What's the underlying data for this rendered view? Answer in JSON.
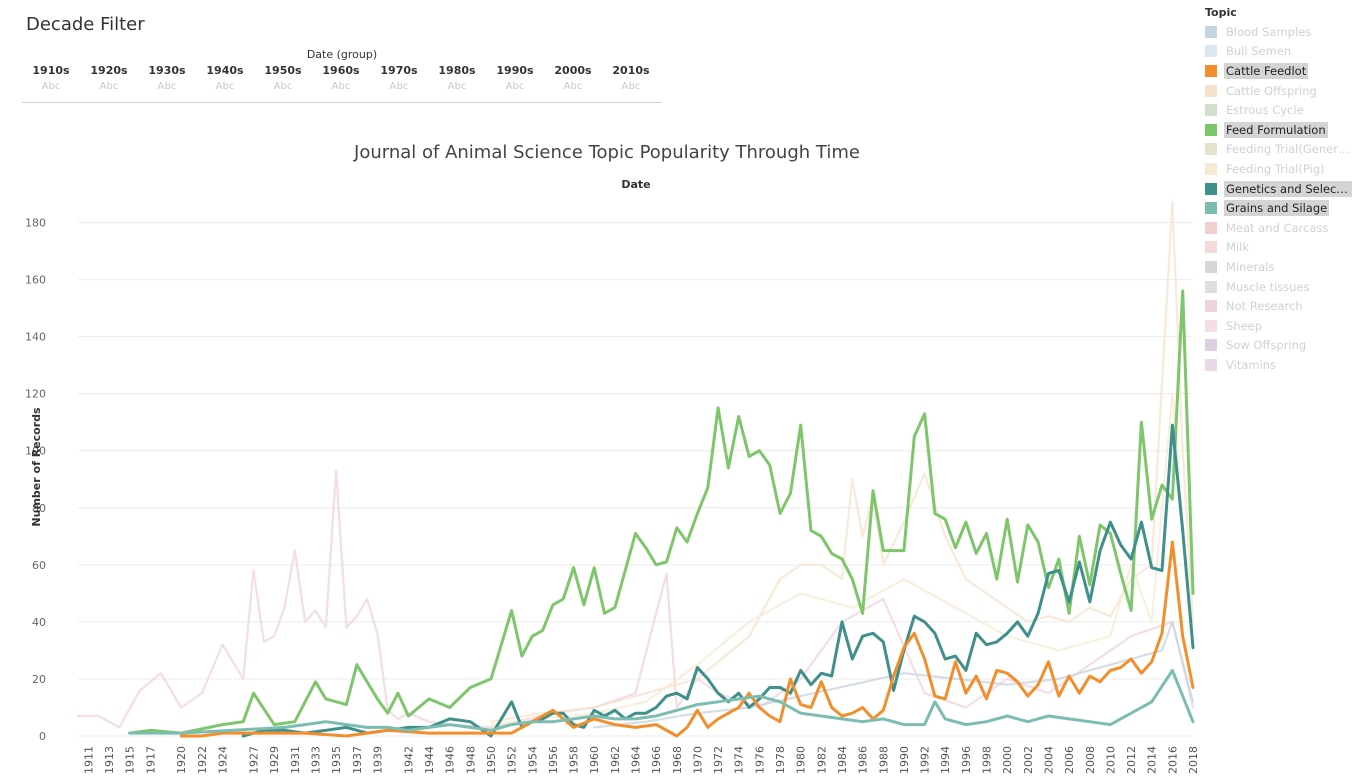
{
  "filter": {
    "title": "Decade Filter",
    "group_header": "Date (group)",
    "decades": [
      {
        "label": "1910s",
        "value": "Abc"
      },
      {
        "label": "1920s",
        "value": "Abc"
      },
      {
        "label": "1930s",
        "value": "Abc"
      },
      {
        "label": "1940s",
        "value": "Abc"
      },
      {
        "label": "1950s",
        "value": "Abc"
      },
      {
        "label": "1960s",
        "value": "Abc"
      },
      {
        "label": "1970s",
        "value": "Abc"
      },
      {
        "label": "1980s",
        "value": "Abc"
      },
      {
        "label": "1990s",
        "value": "Abc"
      },
      {
        "label": "2000s",
        "value": "Abc"
      },
      {
        "label": "2010s",
        "value": "Abc"
      }
    ]
  },
  "legend": {
    "title": "Topic",
    "items": [
      {
        "label": "Blood Samples",
        "color": "#c5d3e2",
        "state": "faded"
      },
      {
        "label": "Bull Semen",
        "color": "#dbe6f2",
        "state": "faded"
      },
      {
        "label": "Cattle Feedlot",
        "color": "#f28e2b",
        "state": "highlight"
      },
      {
        "label": "Cattle Offspring",
        "color": "#f5e1cc",
        "state": "faded"
      },
      {
        "label": "Estrous Cycle",
        "color": "#d0e0cc",
        "state": "faded"
      },
      {
        "label": "Feed Formulation",
        "color": "#7ec66b",
        "state": "highlight"
      },
      {
        "label": "Feeding Trial(Generic)",
        "color": "#e2e2cf",
        "state": "faded"
      },
      {
        "label": "Feeding Trial(Pig)",
        "color": "#f5ebd2",
        "state": "faded"
      },
      {
        "label": "Genetics and Selecti...",
        "color": "#3f8f8a",
        "state": "highlight"
      },
      {
        "label": "Grains and Silage",
        "color": "#7cbdb2",
        "state": "highlight"
      },
      {
        "label": "Meat and Carcass",
        "color": "#f1d0d0",
        "state": "faded"
      },
      {
        "label": "Milk",
        "color": "#f6d8d8",
        "state": "faded"
      },
      {
        "label": "Minerals",
        "color": "#d6d6d6",
        "state": "faded"
      },
      {
        "label": "Muscle tissues",
        "color": "#dedede",
        "state": "faded"
      },
      {
        "label": "Not Research",
        "color": "#efd3dc",
        "state": "faded"
      },
      {
        "label": "Sheep",
        "color": "#f4dfe6",
        "state": "faded"
      },
      {
        "label": "Sow Offspring",
        "color": "#dcd0e0",
        "state": "faded"
      },
      {
        "label": "Vitamins",
        "color": "#ead8e6",
        "state": "faded"
      }
    ]
  },
  "chart_data": {
    "type": "line",
    "title": "Journal of Animal Science Topic Popularity Through Time",
    "column_header": "Date",
    "ylabel": "Number of Records",
    "ylim": [
      0,
      190
    ],
    "yticks": [
      0,
      20,
      40,
      60,
      80,
      100,
      120,
      140,
      160,
      180
    ],
    "xlim": [
      1910,
      2018
    ],
    "xticks": [
      1911,
      1913,
      1915,
      1917,
      1920,
      1922,
      1924,
      1927,
      1929,
      1931,
      1933,
      1935,
      1937,
      1939,
      1942,
      1944,
      1946,
      1948,
      1950,
      1952,
      1954,
      1956,
      1958,
      1960,
      1962,
      1964,
      1966,
      1968,
      1970,
      1972,
      1974,
      1976,
      1978,
      1980,
      1982,
      1984,
      1986,
      1988,
      1990,
      1992,
      1994,
      1996,
      1998,
      2000,
      2002,
      2004,
      2006,
      2008,
      2010,
      2012,
      2014,
      2016,
      2018
    ],
    "grid": "horizontal",
    "series": [
      {
        "name": "Feed Formulation",
        "color": "#7ec66b",
        "emphasis": true,
        "x": [
          1915,
          1917,
          1920,
          1924,
          1926,
          1927,
          1929,
          1931,
          1933,
          1934,
          1936,
          1937,
          1939,
          1940,
          1941,
          1942,
          1944,
          1946,
          1948,
          1950,
          1952,
          1953,
          1954,
          1955,
          1956,
          1957,
          1958,
          1959,
          1960,
          1961,
          1962,
          1964,
          1965,
          1966,
          1967,
          1968,
          1969,
          1970,
          1971,
          1972,
          1973,
          1974,
          1975,
          1976,
          1977,
          1978,
          1979,
          1980,
          1981,
          1982,
          1983,
          1984,
          1985,
          1986,
          1987,
          1988,
          1989,
          1990,
          1991,
          1992,
          1993,
          1994,
          1995,
          1996,
          1997,
          1998,
          1999,
          2000,
          2001,
          2002,
          2003,
          2004,
          2005,
          2006,
          2007,
          2008,
          2009,
          2010,
          2011,
          2012,
          2013,
          2014,
          2015,
          2016,
          2017,
          2018
        ],
        "y": [
          1,
          2,
          1,
          4,
          5,
          15,
          4,
          5,
          19,
          13,
          11,
          25,
          13,
          8,
          15,
          7,
          13,
          10,
          17,
          20,
          44,
          28,
          35,
          37,
          46,
          48,
          59,
          46,
          59,
          43,
          45,
          71,
          66,
          60,
          61,
          73,
          68,
          78,
          87,
          115,
          94,
          112,
          98,
          100,
          95,
          78,
          85,
          109,
          72,
          70,
          64,
          62,
          55,
          43,
          86,
          65,
          65,
          65,
          105,
          113,
          78,
          76,
          66,
          75,
          64,
          71,
          55,
          76,
          54,
          74,
          68,
          52,
          62,
          43,
          70,
          53,
          74,
          71,
          57,
          44,
          110,
          76,
          88,
          83,
          156,
          50
        ]
      },
      {
        "name": "Genetics and Selection",
        "color": "#3f8f8a",
        "emphasis": true,
        "x": [
          1926,
          1928,
          1930,
          1932,
          1934,
          1936,
          1938,
          1940,
          1942,
          1944,
          1946,
          1948,
          1950,
          1952,
          1953,
          1954,
          1955,
          1956,
          1957,
          1958,
          1959,
          1960,
          1961,
          1962,
          1963,
          1964,
          1965,
          1966,
          1967,
          1968,
          1969,
          1970,
          1971,
          1972,
          1973,
          1974,
          1975,
          1976,
          1977,
          1978,
          1979,
          1980,
          1981,
          1982,
          1983,
          1984,
          1985,
          1986,
          1987,
          1988,
          1989,
          1990,
          1991,
          1992,
          1993,
          1994,
          1995,
          1996,
          1997,
          1998,
          1999,
          2000,
          2001,
          2002,
          2003,
          2004,
          2005,
          2006,
          2007,
          2008,
          2009,
          2010,
          2011,
          2012,
          2013,
          2014,
          2015,
          2016,
          2017,
          2018
        ],
        "y": [
          0,
          2,
          2,
          1,
          2,
          3,
          1,
          2,
          3,
          3,
          6,
          5,
          0,
          12,
          3,
          5,
          6,
          8,
          8,
          4,
          3,
          9,
          7,
          9,
          6,
          8,
          8,
          10,
          14,
          15,
          13,
          24,
          20,
          15,
          12,
          15,
          10,
          13,
          17,
          17,
          15,
          23,
          18,
          22,
          21,
          40,
          27,
          35,
          36,
          33,
          16,
          30,
          42,
          40,
          36,
          27,
          28,
          23,
          36,
          32,
          33,
          36,
          40,
          35,
          43,
          57,
          58,
          47,
          61,
          47,
          65,
          75,
          67,
          62,
          75,
          59,
          58,
          109,
          72,
          31
        ]
      },
      {
        "name": "Cattle Feedlot",
        "color": "#f28e2b",
        "emphasis": true,
        "x": [
          1920,
          1922,
          1924,
          1928,
          1932,
          1936,
          1940,
          1944,
          1948,
          1952,
          1956,
          1958,
          1960,
          1962,
          1964,
          1966,
          1968,
          1969,
          1970,
          1971,
          1972,
          1974,
          1975,
          1976,
          1977,
          1978,
          1979,
          1980,
          1981,
          1982,
          1983,
          1984,
          1985,
          1986,
          1987,
          1988,
          1989,
          1990,
          1991,
          1992,
          1993,
          1994,
          1995,
          1996,
          1997,
          1998,
          1999,
          2000,
          2001,
          2002,
          2003,
          2004,
          2005,
          2006,
          2007,
          2008,
          2009,
          2010,
          2011,
          2012,
          2013,
          2014,
          2015,
          2016,
          2017,
          2018
        ],
        "y": [
          0,
          0,
          1,
          1,
          1,
          0,
          2,
          1,
          1,
          1,
          9,
          3,
          6,
          4,
          3,
          4,
          0,
          3,
          9,
          3,
          6,
          10,
          15,
          10,
          7,
          5,
          20,
          11,
          10,
          19,
          10,
          7,
          8,
          10,
          6,
          9,
          21,
          31,
          36,
          27,
          14,
          13,
          26,
          15,
          21,
          13,
          23,
          22,
          19,
          14,
          18,
          26,
          14,
          21,
          15,
          21,
          19,
          23,
          24,
          27,
          22,
          26,
          36,
          68,
          35,
          17
        ]
      },
      {
        "name": "Grains and Silage",
        "color": "#7cbdb2",
        "emphasis": true,
        "x": [
          1915,
          1920,
          1925,
          1930,
          1932,
          1934,
          1936,
          1938,
          1940,
          1942,
          1944,
          1946,
          1948,
          1950,
          1952,
          1954,
          1956,
          1958,
          1960,
          1962,
          1964,
          1966,
          1968,
          1970,
          1972,
          1974,
          1976,
          1978,
          1980,
          1982,
          1984,
          1986,
          1988,
          1990,
          1992,
          1993,
          1994,
          1996,
          1998,
          2000,
          2002,
          2004,
          2006,
          2008,
          2010,
          2012,
          2014,
          2016,
          2018
        ],
        "y": [
          1,
          1,
          2,
          3,
          4,
          5,
          4,
          3,
          3,
          2,
          3,
          4,
          3,
          2,
          4,
          5,
          5,
          6,
          7,
          6,
          6,
          7,
          9,
          11,
          12,
          13,
          14,
          12,
          8,
          7,
          6,
          5,
          6,
          4,
          4,
          12,
          6,
          4,
          5,
          7,
          5,
          7,
          6,
          5,
          4,
          8,
          12,
          23,
          5
        ]
      },
      {
        "name": "Not Research",
        "color": "#efd3dc",
        "emphasis": false,
        "x": [
          1910,
          1912,
          1914,
          1916,
          1918,
          1920,
          1922,
          1924,
          1926,
          1927,
          1928,
          1929,
          1930,
          1931,
          1932,
          1933,
          1934,
          1935,
          1936,
          1937,
          1938,
          1939,
          1940,
          1941,
          1942,
          1944,
          1946,
          1950,
          1956,
          1960,
          1964,
          1967,
          1968,
          1970,
          1972,
          1976,
          1980,
          1984,
          1988,
          1992,
          1996,
          2000,
          2004,
          2008,
          2012,
          2016,
          2018
        ],
        "y": [
          7,
          7,
          3,
          16,
          22,
          10,
          15,
          32,
          20,
          58,
          33,
          35,
          45,
          65,
          40,
          44,
          38,
          93,
          38,
          42,
          48,
          36,
          9,
          6,
          8,
          5,
          4,
          3,
          8,
          10,
          15,
          57,
          10,
          20,
          15,
          10,
          20,
          40,
          48,
          15,
          10,
          20,
          15,
          25,
          35,
          40,
          10
        ]
      },
      {
        "name": "Cattle Offspring",
        "color": "#f5e1cc",
        "emphasis": false,
        "x": [
          1950,
          1955,
          1960,
          1965,
          1970,
          1975,
          1978,
          1980,
          1982,
          1984,
          1985,
          1986,
          1987,
          1988,
          1990,
          1992,
          1994,
          1996,
          1998,
          2000,
          2002,
          2004,
          2006,
          2008,
          2010,
          2012,
          2014,
          2016,
          2017,
          2018
        ],
        "y": [
          5,
          8,
          10,
          15,
          20,
          35,
          55,
          60,
          60,
          55,
          90,
          70,
          84,
          60,
          75,
          92,
          70,
          55,
          50,
          45,
          40,
          42,
          40,
          45,
          42,
          55,
          60,
          187,
          100,
          40
        ]
      },
      {
        "name": "Feeding Trial(Pig)",
        "color": "#f5ebd2",
        "emphasis": false,
        "x": [
          1950,
          1955,
          1960,
          1965,
          1970,
          1975,
          1980,
          1985,
          1990,
          1995,
          2000,
          2005,
          2010,
          2012,
          2014,
          2016,
          2018
        ],
        "y": [
          4,
          6,
          8,
          12,
          25,
          40,
          50,
          45,
          55,
          45,
          35,
          30,
          35,
          60,
          40,
          120,
          30
        ]
      },
      {
        "name": "Blood Samples",
        "color": "#c5d3e2",
        "emphasis": false,
        "x": [
          1960,
          1965,
          1970,
          1975,
          1980,
          1985,
          1990,
          1995,
          2000,
          2005,
          2010,
          2015,
          2016,
          2018
        ],
        "y": [
          3,
          5,
          8,
          10,
          14,
          18,
          22,
          20,
          18,
          20,
          25,
          30,
          40,
          12
        ]
      }
    ]
  }
}
